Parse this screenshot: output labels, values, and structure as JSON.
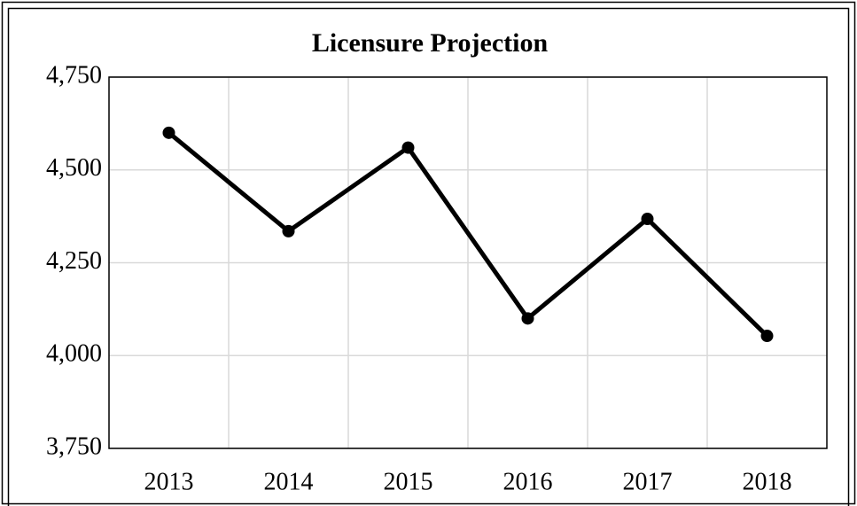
{
  "chart_data": {
    "type": "line",
    "title": "Licensure Projection",
    "categories": [
      "2013",
      "2014",
      "2015",
      "2016",
      "2017",
      "2018"
    ],
    "series": [
      {
        "name": "Licensure Projection",
        "color": "#000000",
        "values": [
          4600,
          4335,
          4560,
          4100,
          4368,
          4053
        ]
      }
    ],
    "ylim": [
      3750,
      4750
    ],
    "yticks": [
      {
        "value": 3750,
        "label": "3,750"
      },
      {
        "value": 4000,
        "label": "4,000"
      },
      {
        "value": 4250,
        "label": "4,250"
      },
      {
        "value": 4500,
        "label": "4,500"
      },
      {
        "value": 4750,
        "label": "4,750"
      }
    ],
    "grid": true
  }
}
